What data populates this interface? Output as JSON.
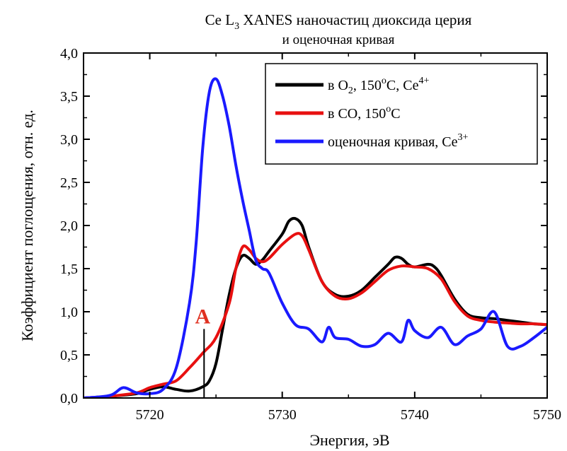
{
  "chart_data": {
    "type": "line",
    "title_main": "Ce L",
    "title_sub": "3",
    "title_rest": " XANES наночастиц диоксида церия",
    "subtitle": "и оценочная кривая",
    "xlabel": "Энергия, эВ",
    "ylabel": "Коэффициент поглощения, отн. ед.",
    "xlim": [
      5715,
      5750
    ],
    "ylim": [
      0,
      4
    ],
    "xticks": [
      5720,
      5730,
      5740,
      5750
    ],
    "xtick_labels": [
      "5720",
      "5730",
      "5740",
      "5750"
    ],
    "yticks": [
      0,
      0.5,
      1,
      1.5,
      2,
      2.5,
      3,
      3.5,
      4
    ],
    "ytick_labels": [
      "0,0",
      "0,5",
      "1,0",
      "1,5",
      "2,0",
      "2,5",
      "3,0",
      "3,5",
      "4,0"
    ],
    "legend_position": "top-right",
    "annotation": {
      "text": "A",
      "x": 5724.1,
      "y_from": 0,
      "y_to": 0.8,
      "color": "#e03020"
    },
    "series": [
      {
        "legend_parts": [
          [
            "в O",
            ""
          ],
          [
            "2",
            "sub"
          ],
          [
            ", 150",
            ""
          ],
          [
            "o",
            "sup"
          ],
          [
            "C, Ce",
            ""
          ],
          [
            "4+",
            "sup"
          ]
        ],
        "color": "#000000",
        "x": [
          5715,
          5717,
          5719,
          5720,
          5721,
          5722,
          5723,
          5724,
          5724.5,
          5725,
          5725.5,
          5726,
          5726.5,
          5727,
          5727.5,
          5728,
          5728.5,
          5729,
          5730,
          5730.5,
          5731,
          5731.5,
          5732,
          5733,
          5734,
          5735,
          5736,
          5737,
          5738,
          5738.5,
          5739,
          5739.5,
          5740,
          5741,
          5741.5,
          5742,
          5743,
          5744,
          5745,
          5746,
          5747,
          5748,
          5749,
          5750
        ],
        "y": [
          0.0,
          0.02,
          0.05,
          0.1,
          0.13,
          0.1,
          0.08,
          0.13,
          0.2,
          0.4,
          0.8,
          1.2,
          1.5,
          1.65,
          1.62,
          1.55,
          1.6,
          1.7,
          1.9,
          2.05,
          2.08,
          2.0,
          1.75,
          1.35,
          1.2,
          1.18,
          1.25,
          1.4,
          1.55,
          1.63,
          1.62,
          1.55,
          1.52,
          1.55,
          1.52,
          1.42,
          1.15,
          0.97,
          0.93,
          0.92,
          0.9,
          0.88,
          0.86,
          0.85
        ]
      },
      {
        "legend_parts": [
          [
            "в CO, 150",
            ""
          ],
          [
            "o",
            "sup"
          ],
          [
            "C",
            ""
          ]
        ],
        "color": "#e81010",
        "x": [
          5715,
          5717,
          5719,
          5720,
          5721,
          5722,
          5723,
          5724,
          5725,
          5726,
          5726.5,
          5727,
          5727.5,
          5728,
          5728.5,
          5729,
          5730,
          5731,
          5731.5,
          5732,
          5733,
          5734,
          5735,
          5736,
          5737,
          5738,
          5739,
          5740,
          5741,
          5742,
          5743,
          5744,
          5745,
          5746,
          5747,
          5748,
          5749,
          5750
        ],
        "y": [
          0.0,
          0.02,
          0.06,
          0.12,
          0.16,
          0.2,
          0.35,
          0.52,
          0.7,
          1.1,
          1.5,
          1.75,
          1.72,
          1.62,
          1.58,
          1.62,
          1.78,
          1.9,
          1.88,
          1.72,
          1.35,
          1.18,
          1.15,
          1.22,
          1.35,
          1.48,
          1.53,
          1.52,
          1.5,
          1.38,
          1.12,
          0.95,
          0.9,
          0.88,
          0.87,
          0.86,
          0.86,
          0.85
        ]
      },
      {
        "legend_parts": [
          [
            "оценочная кривая, Ce",
            ""
          ],
          [
            "3+",
            "sup"
          ]
        ],
        "color": "#1a1aff",
        "x": [
          5715,
          5717,
          5718,
          5719,
          5720,
          5721,
          5722,
          5723,
          5723.5,
          5724,
          5724.5,
          5725,
          5725.5,
          5726,
          5726.5,
          5727,
          5727.5,
          5728,
          5728.5,
          5729,
          5730,
          5731,
          5732,
          5733,
          5733.5,
          5734,
          5735,
          5736,
          5737,
          5738,
          5739,
          5739.5,
          5740,
          5741,
          5742,
          5743,
          5744,
          5745,
          5746,
          5747,
          5748,
          5749,
          5750
        ],
        "y": [
          0.0,
          0.03,
          0.12,
          0.06,
          0.05,
          0.1,
          0.35,
          1.1,
          1.8,
          2.9,
          3.55,
          3.7,
          3.5,
          3.15,
          2.7,
          2.3,
          1.95,
          1.6,
          1.5,
          1.45,
          1.1,
          0.85,
          0.8,
          0.65,
          0.82,
          0.7,
          0.68,
          0.6,
          0.62,
          0.75,
          0.65,
          0.9,
          0.78,
          0.7,
          0.82,
          0.62,
          0.72,
          0.8,
          1.0,
          0.6,
          0.6,
          0.7,
          0.82
        ]
      }
    ]
  }
}
